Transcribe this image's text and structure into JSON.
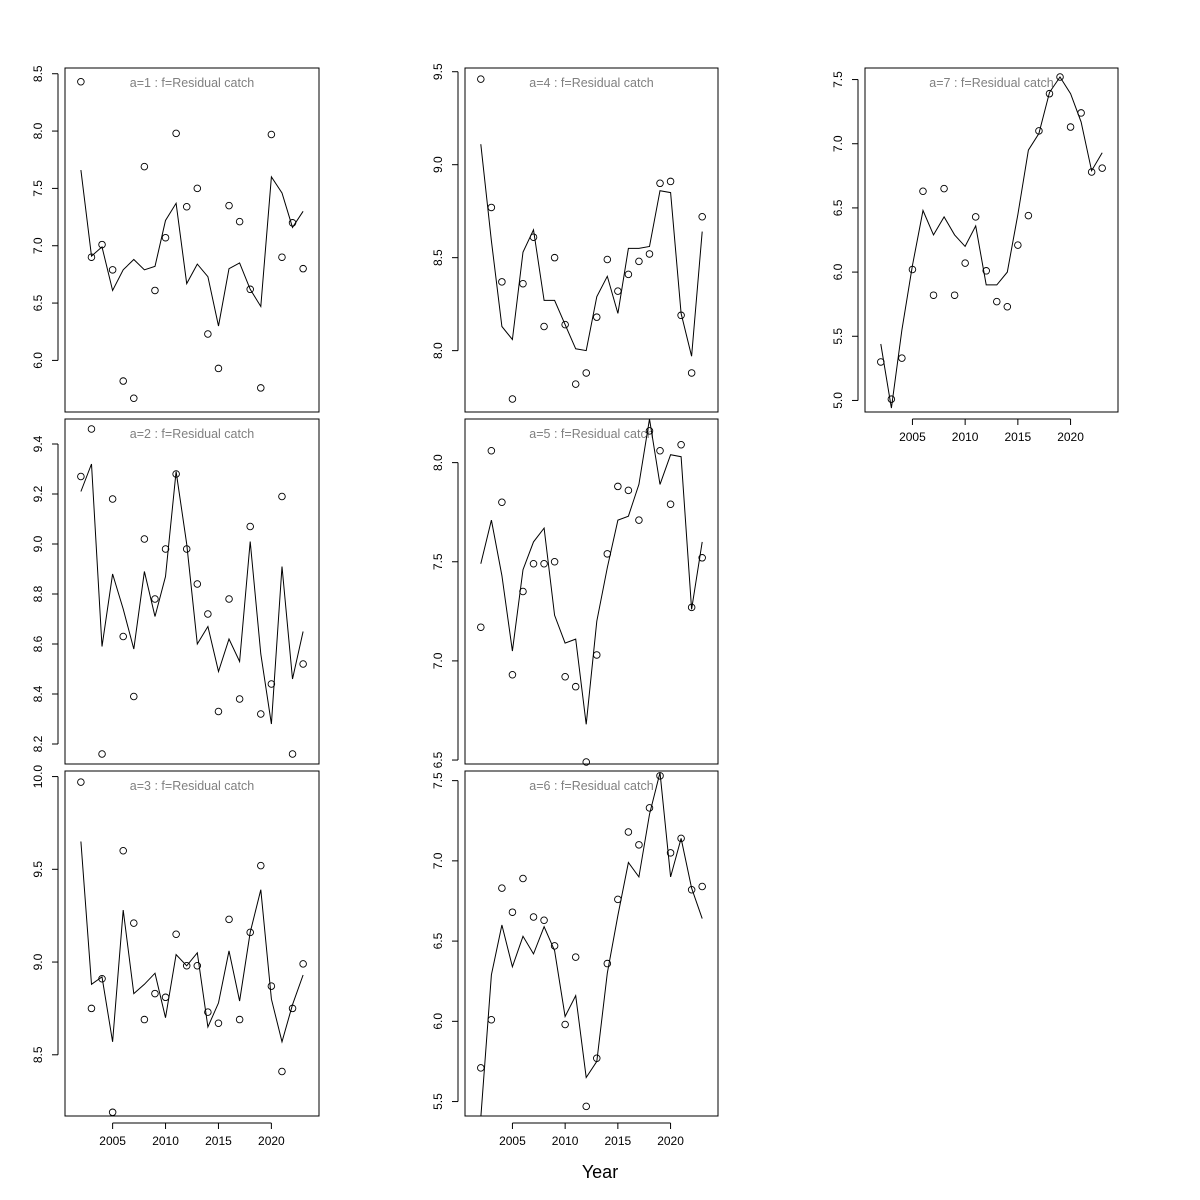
{
  "figure": {
    "xlabel": "Year"
  },
  "chart_data": [
    {
      "type": "scatter+line",
      "title": "a=1  :  f=Residual catch",
      "xlim": [
        2000.5,
        2024.5
      ],
      "ylim": [
        5.55,
        8.55
      ],
      "yticks": [
        "6.0",
        "6.5",
        "7.0",
        "7.5",
        "8.0",
        "8.5"
      ],
      "xticks": [],
      "x": [
        2002,
        2003,
        2004,
        2005,
        2006,
        2007,
        2008,
        2009,
        2010,
        2011,
        2012,
        2013,
        2014,
        2015,
        2016,
        2017,
        2018,
        2019,
        2020,
        2021,
        2022,
        2023
      ],
      "observed": [
        8.43,
        6.9,
        7.01,
        6.79,
        5.82,
        5.67,
        7.69,
        6.61,
        7.07,
        7.98,
        7.34,
        7.5,
        6.23,
        5.93,
        7.35,
        7.21,
        6.62,
        5.76,
        7.97,
        6.9,
        7.2,
        6.8
      ],
      "fitted": [
        7.66,
        6.91,
        6.99,
        6.61,
        6.79,
        6.88,
        6.79,
        6.82,
        7.22,
        7.37,
        6.67,
        6.84,
        6.73,
        6.3,
        6.8,
        6.85,
        6.62,
        6.47,
        7.6,
        7.46,
        7.16,
        7.3
      ]
    },
    {
      "type": "scatter+line",
      "title": "a=2  :  f=Residual catch",
      "xlim": [
        2000.5,
        2024.5
      ],
      "ylim": [
        8.12,
        9.5
      ],
      "yticks": [
        "8.2",
        "8.4",
        "8.6",
        "8.8",
        "9.0",
        "9.2",
        "9.4"
      ],
      "xticks": [],
      "x": [
        2002,
        2003,
        2004,
        2005,
        2006,
        2007,
        2008,
        2009,
        2010,
        2011,
        2012,
        2013,
        2014,
        2015,
        2016,
        2017,
        2018,
        2019,
        2020,
        2021,
        2022,
        2023
      ],
      "observed": [
        9.27,
        9.46,
        8.16,
        9.18,
        8.63,
        8.39,
        9.02,
        8.78,
        8.98,
        9.28,
        8.98,
        8.84,
        8.72,
        8.33,
        8.78,
        8.38,
        9.07,
        8.32,
        8.44,
        9.19,
        8.16,
        8.52
      ],
      "fitted": [
        9.21,
        9.32,
        8.59,
        8.88,
        8.74,
        8.58,
        8.89,
        8.71,
        8.87,
        9.29,
        9.0,
        8.6,
        8.67,
        8.49,
        8.62,
        8.53,
        9.01,
        8.56,
        8.28,
        8.91,
        8.46,
        8.65
      ]
    },
    {
      "type": "scatter+line",
      "title": "a=3  :  f=Residual catch",
      "xlim": [
        2000.5,
        2024.5
      ],
      "ylim": [
        8.17,
        10.03
      ],
      "yticks": [
        "8.5",
        "9.0",
        "9.5",
        "10.0"
      ],
      "xticks": [
        "2005",
        "2010",
        "2015",
        "2020"
      ],
      "xtick_values": [
        2005,
        2010,
        2015,
        2020
      ],
      "x": [
        2002,
        2003,
        2004,
        2005,
        2006,
        2007,
        2008,
        2009,
        2010,
        2011,
        2012,
        2013,
        2014,
        2015,
        2016,
        2017,
        2018,
        2019,
        2020,
        2021,
        2022,
        2023
      ],
      "observed": [
        9.97,
        8.75,
        8.91,
        8.19,
        9.6,
        9.21,
        8.69,
        8.83,
        8.81,
        9.15,
        8.98,
        8.98,
        8.73,
        8.67,
        9.23,
        8.69,
        9.16,
        9.52,
        8.87,
        8.41,
        8.75,
        8.99
      ],
      "fitted": [
        9.65,
        8.88,
        8.92,
        8.57,
        9.28,
        8.83,
        8.88,
        8.94,
        8.7,
        9.04,
        8.98,
        9.05,
        8.65,
        8.78,
        9.06,
        8.79,
        9.16,
        9.39,
        8.8,
        8.57,
        8.77,
        8.93
      ]
    },
    {
      "type": "scatter+line",
      "title": "a=4  :  f=Residual catch",
      "xlim": [
        2000.5,
        2024.5
      ],
      "ylim": [
        7.67,
        9.52
      ],
      "yticks": [
        "8.0",
        "8.5",
        "9.0",
        "9.5"
      ],
      "xticks": [],
      "x": [
        2002,
        2003,
        2004,
        2005,
        2006,
        2007,
        2008,
        2009,
        2010,
        2011,
        2012,
        2013,
        2014,
        2015,
        2016,
        2017,
        2018,
        2019,
        2020,
        2021,
        2022,
        2023
      ],
      "observed": [
        9.46,
        8.77,
        8.37,
        7.74,
        8.36,
        8.61,
        8.13,
        8.5,
        8.14,
        7.82,
        7.88,
        8.18,
        8.49,
        8.32,
        8.41,
        8.48,
        8.52,
        8.9,
        8.91,
        8.19,
        7.88,
        8.72
      ],
      "fitted": [
        9.11,
        8.59,
        8.13,
        8.06,
        8.53,
        8.65,
        8.27,
        8.27,
        8.14,
        8.01,
        8.0,
        8.29,
        8.4,
        8.2,
        8.55,
        8.55,
        8.56,
        8.86,
        8.85,
        8.2,
        7.97,
        8.64
      ]
    },
    {
      "type": "scatter+line",
      "title": "a=5  :  f=Residual catch",
      "xlim": [
        2000.5,
        2024.5
      ],
      "ylim": [
        6.48,
        8.22
      ],
      "yticks": [
        "6.5",
        "7.0",
        "7.5",
        "8.0"
      ],
      "xticks": [],
      "x": [
        2002,
        2003,
        2004,
        2005,
        2006,
        2007,
        2008,
        2009,
        2010,
        2011,
        2012,
        2013,
        2014,
        2015,
        2016,
        2017,
        2018,
        2019,
        2020,
        2021,
        2022,
        2023
      ],
      "observed": [
        7.17,
        8.06,
        7.8,
        6.93,
        7.35,
        7.49,
        7.49,
        7.5,
        6.92,
        6.87,
        6.49,
        7.03,
        7.54,
        7.88,
        7.86,
        7.71,
        8.16,
        8.06,
        7.79,
        8.09,
        7.27,
        7.52
      ],
      "fitted": [
        7.49,
        7.71,
        7.43,
        7.05,
        7.46,
        7.6,
        7.67,
        7.23,
        7.09,
        7.11,
        6.68,
        7.2,
        7.47,
        7.71,
        7.73,
        7.89,
        8.22,
        7.89,
        8.04,
        8.03,
        7.26,
        7.6
      ]
    },
    {
      "type": "scatter+line",
      "title": "a=6  :  f=Residual catch",
      "xlim": [
        2000.5,
        2024.5
      ],
      "ylim": [
        5.41,
        7.56
      ],
      "yticks": [
        "5.5",
        "6.0",
        "6.5",
        "7.0",
        "7.5"
      ],
      "xticks": [
        "2005",
        "2010",
        "2015",
        "2020"
      ],
      "xtick_values": [
        2005,
        2010,
        2015,
        2020
      ],
      "x": [
        2002,
        2003,
        2004,
        2005,
        2006,
        2007,
        2008,
        2009,
        2010,
        2011,
        2012,
        2013,
        2014,
        2015,
        2016,
        2017,
        2018,
        2019,
        2020,
        2021,
        2022,
        2023
      ],
      "observed": [
        5.71,
        6.01,
        6.83,
        6.68,
        6.89,
        6.65,
        6.63,
        6.47,
        5.98,
        6.4,
        5.47,
        5.77,
        6.36,
        6.76,
        7.18,
        7.1,
        7.33,
        7.53,
        7.05,
        7.14,
        6.82,
        6.84
      ],
      "fitted": [
        5.4,
        6.29,
        6.6,
        6.34,
        6.53,
        6.42,
        6.59,
        6.44,
        6.03,
        6.16,
        5.65,
        5.75,
        6.3,
        6.66,
        6.99,
        6.9,
        7.29,
        7.55,
        6.9,
        7.14,
        6.83,
        6.64
      ]
    },
    {
      "type": "scatter+line",
      "title": "a=7  :  f=Residual catch",
      "xlim": [
        2000.5,
        2024.5
      ],
      "ylim": [
        4.91,
        7.59
      ],
      "yticks": [
        "5.0",
        "5.5",
        "6.0",
        "6.5",
        "7.0",
        "7.5"
      ],
      "xticks": [
        "2005",
        "2010",
        "2015",
        "2020"
      ],
      "xtick_values": [
        2005,
        2010,
        2015,
        2020
      ],
      "x": [
        2002,
        2003,
        2004,
        2005,
        2006,
        2007,
        2008,
        2009,
        2010,
        2011,
        2012,
        2013,
        2014,
        2015,
        2016,
        2017,
        2018,
        2019,
        2020,
        2021,
        2022,
        2023
      ],
      "observed": [
        5.3,
        5.01,
        5.33,
        6.02,
        6.63,
        5.82,
        6.65,
        5.82,
        6.07,
        6.43,
        6.01,
        5.77,
        5.73,
        6.21,
        6.44,
        7.1,
        7.39,
        7.52,
        7.13,
        7.24,
        6.78,
        6.81
      ],
      "fitted": [
        5.44,
        4.94,
        5.55,
        6.05,
        6.48,
        6.29,
        6.43,
        6.29,
        6.2,
        6.36,
        5.9,
        5.9,
        6.0,
        6.45,
        6.95,
        7.08,
        7.4,
        7.52,
        7.39,
        7.17,
        6.79,
        6.93
      ]
    }
  ]
}
